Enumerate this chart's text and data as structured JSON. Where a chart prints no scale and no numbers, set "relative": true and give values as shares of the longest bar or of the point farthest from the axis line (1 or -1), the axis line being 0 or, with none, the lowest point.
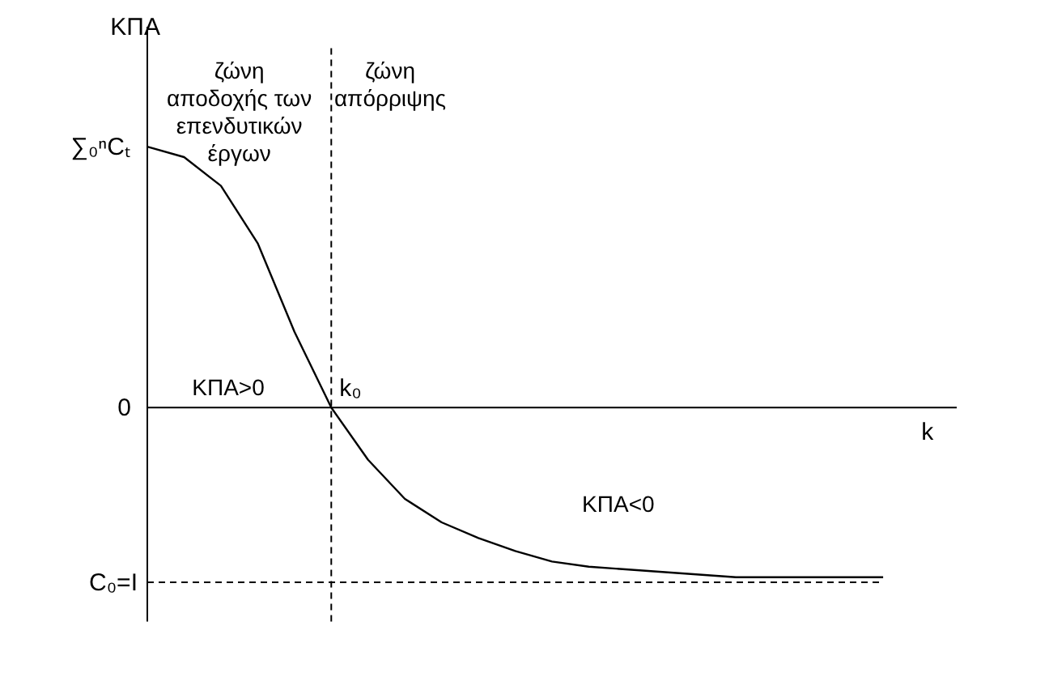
{
  "chart_data": {
    "type": "line",
    "relative": true,
    "ylabel": "ΚΠΑ",
    "xlabel": "k",
    "categories": [
      null,
      null,
      null,
      null,
      null,
      null,
      null,
      null,
      null,
      null,
      null,
      null,
      null,
      null,
      null,
      null,
      null,
      null,
      null,
      null,
      null
    ],
    "series": [
      {
        "color": "#000000",
        "values": [
          1.0,
          0.96,
          0.85,
          0.63,
          0.29,
          0,
          -0.2,
          -0.35,
          -0.44,
          -0.5,
          -0.55,
          -0.59,
          -0.61,
          -0.62,
          -0.63,
          -0.64,
          -0.65,
          -0.65,
          -0.65,
          -0.65,
          -0.65
        ]
      }
    ],
    "ref_lines": [
      {
        "axis": "y",
        "value": -0.67,
        "label": "C₀=I",
        "line_style": "dashed"
      }
    ],
    "annotations": [
      "ζώνη\nαποδοχής των\nεπενδυτικών\nέργων",
      "ζώνη\nαπόρριψης",
      "ΚΠΑ>0",
      "ΚΠΑ<0",
      "∑₀ⁿCₜ",
      "0",
      "k₀"
    ],
    "marker": "none",
    "line_style": "solid"
  }
}
